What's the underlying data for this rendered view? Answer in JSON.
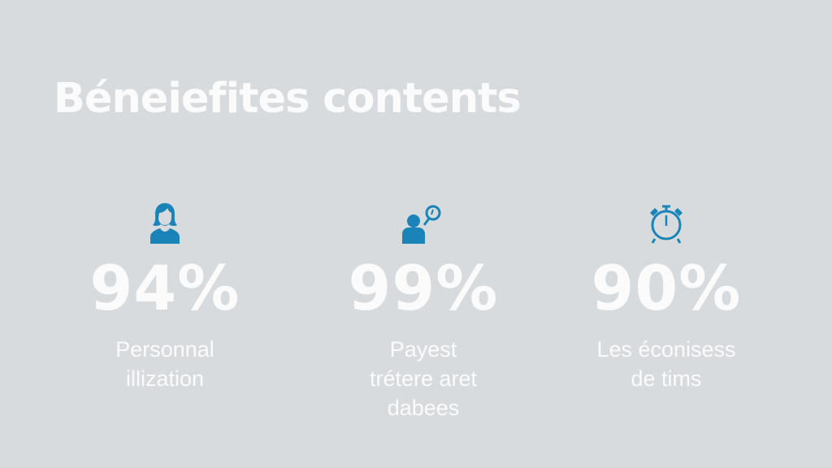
{
  "title": "Béneiefites contents",
  "accent_color": "#1a84b8",
  "stats": [
    {
      "icon": "woman-user-icon",
      "value": "94%",
      "label_lines": [
        "Personnal",
        "illization"
      ]
    },
    {
      "icon": "user-search-icon",
      "value": "99%",
      "label_lines": [
        "Payest",
        "trétere aret",
        "dabees"
      ]
    },
    {
      "icon": "alarm-clock-icon",
      "value": "90%",
      "label_lines": [
        "Les éconisess",
        "de tims"
      ]
    }
  ]
}
